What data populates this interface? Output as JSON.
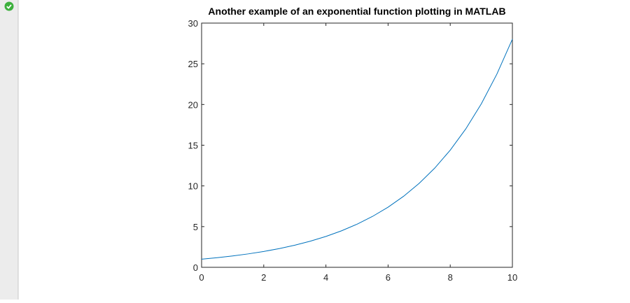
{
  "chart_data": {
    "type": "line",
    "title": "Another example of an exponential function plotting in MATLAB",
    "x": [
      0,
      0.5,
      1,
      1.5,
      2,
      2.5,
      3,
      3.5,
      4,
      4.5,
      5,
      5.5,
      6,
      6.5,
      7,
      7.5,
      8,
      8.5,
      9,
      9.5,
      10
    ],
    "series": [
      {
        "color": "#0072bd",
        "values": [
          1,
          1.181,
          1.396,
          1.649,
          1.948,
          2.301,
          2.718,
          3.211,
          3.794,
          4.482,
          5.294,
          6.254,
          7.389,
          8.729,
          10.312,
          12.182,
          14.392,
          17.002,
          20.086,
          23.728,
          28.032
        ]
      }
    ],
    "xlim": [
      0,
      10
    ],
    "xticks": [
      0,
      2,
      4,
      6,
      8,
      10
    ],
    "ylim": [
      0,
      30
    ],
    "yticks": [
      0,
      5,
      10,
      15,
      20,
      25,
      30
    ],
    "grid": false
  }
}
